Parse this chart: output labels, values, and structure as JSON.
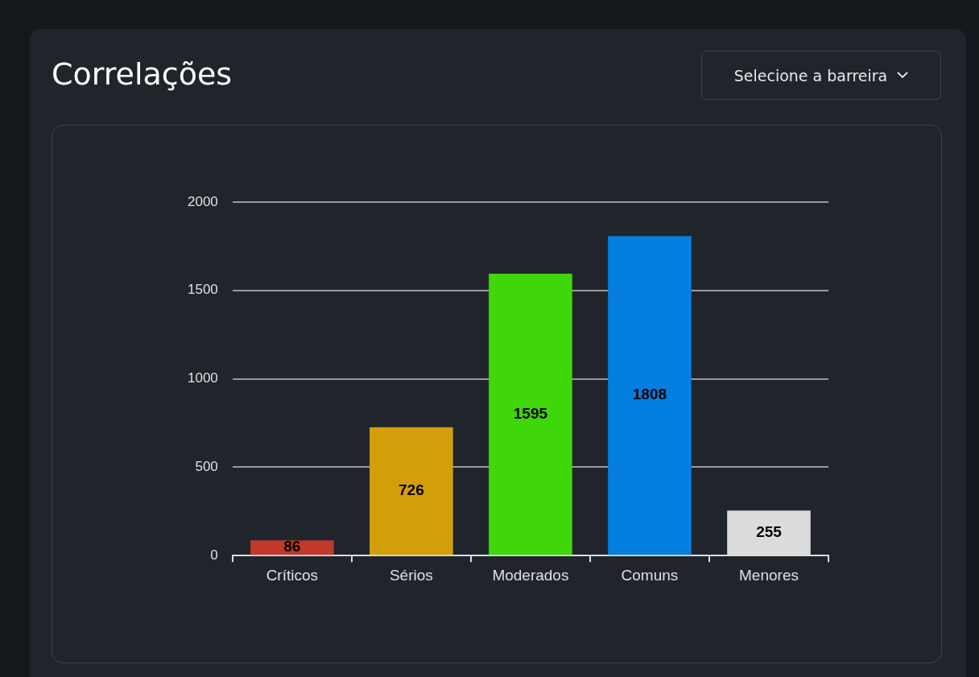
{
  "chart_data": {
    "type": "bar",
    "title": "Correlações",
    "annotations": [
      "Selecione a barreira"
    ],
    "categories": [
      "Críticos",
      "Sérios",
      "Moderados",
      "Comuns",
      "Menores"
    ],
    "values": [
      86,
      726,
      1595,
      1808,
      255
    ],
    "colors": [
      "#c0392b",
      "#d49e08",
      "#3fd60a",
      "#047edf",
      "#dcdcdc"
    ],
    "ylim": [
      0,
      2000
    ],
    "yticks": [
      0,
      500,
      1000,
      1500,
      2000
    ],
    "grid": "y",
    "legend": false,
    "data_labels": true
  }
}
